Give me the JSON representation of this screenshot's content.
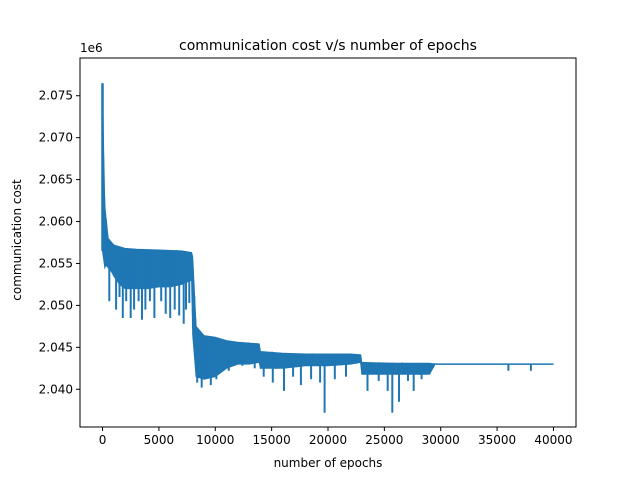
{
  "chart_data": {
    "type": "line",
    "title": "communication cost v/s number of epochs",
    "xlabel": "number of epochs",
    "ylabel": "communication cost",
    "offset_text": "1e6",
    "xlim": [
      -2000,
      42000
    ],
    "ylim": [
      2.0355,
      2.0795
    ],
    "xticks": [
      0,
      5000,
      10000,
      15000,
      20000,
      25000,
      30000,
      35000,
      40000
    ],
    "xtick_labels": [
      "0",
      "5000",
      "10000",
      "15000",
      "20000",
      "25000",
      "30000",
      "35000",
      "40000"
    ],
    "yticks": [
      2.04,
      2.045,
      2.05,
      2.055,
      2.06,
      2.065,
      2.07,
      2.075
    ],
    "ytick_labels": [
      "2.040",
      "2.045",
      "2.050",
      "2.055",
      "2.060",
      "2.065",
      "2.070",
      "2.075"
    ],
    "grid": false,
    "series_color": "#1f77b4",
    "series": [
      {
        "upper": {
          "x": [
            0,
            100,
            200,
            300,
            500,
            800,
            1000,
            1500,
            2000,
            3000,
            5000,
            7000,
            7900,
            8000,
            8300,
            9000,
            10000,
            11000,
            12000,
            13000,
            13900,
            14000,
            16000,
            18000,
            20000,
            22000,
            22900,
            23000,
            26000,
            29000,
            29500,
            40000
          ],
          "y": [
            2.0765,
            2.068,
            2.062,
            2.0605,
            2.058,
            2.0575,
            2.0572,
            2.057,
            2.0568,
            2.0567,
            2.0566,
            2.0565,
            2.0563,
            2.0558,
            2.0475,
            2.0464,
            2.0462,
            2.0458,
            2.0456,
            2.0455,
            2.0454,
            2.0445,
            2.0443,
            2.0442,
            2.0442,
            2.0442,
            2.0441,
            2.0432,
            2.0431,
            2.0431,
            2.043,
            2.043
          ]
        },
        "lower": {
          "x": [
            0,
            100,
            200,
            300,
            500,
            800,
            1000,
            1500,
            2000,
            3000,
            4000,
            5000,
            6000,
            7000,
            7900,
            8000,
            8300,
            9000,
            10000,
            11000,
            12000,
            13000,
            13900,
            14000,
            16000,
            18000,
            20000,
            22000,
            22900,
            23000,
            26000,
            29000,
            29500,
            40000
          ],
          "y": [
            2.0565,
            2.0555,
            2.0545,
            2.0548,
            2.0545,
            2.054,
            2.0535,
            2.0525,
            2.052,
            2.052,
            2.052,
            2.0522,
            2.0522,
            2.0525,
            2.053,
            2.0465,
            2.0415,
            2.0412,
            2.0415,
            2.0425,
            2.043,
            2.043,
            2.0432,
            2.0425,
            2.0425,
            2.0428,
            2.0428,
            2.043,
            2.0432,
            2.0418,
            2.0418,
            2.0418,
            2.043,
            2.043
          ]
        },
        "spikes": [
          [
            600,
            2.0505
          ],
          [
            1200,
            2.0495
          ],
          [
            1500,
            2.051
          ],
          [
            1800,
            2.0485
          ],
          [
            2100,
            2.0505
          ],
          [
            2500,
            2.0485
          ],
          [
            2800,
            2.0495
          ],
          [
            3200,
            2.0505
          ],
          [
            3500,
            2.0483
          ],
          [
            3800,
            2.0495
          ],
          [
            4200,
            2.0505
          ],
          [
            4600,
            2.0485
          ],
          [
            5200,
            2.0505
          ],
          [
            5600,
            2.049
          ],
          [
            6000,
            2.0485
          ],
          [
            6400,
            2.0495
          ],
          [
            6800,
            2.0488
          ],
          [
            7200,
            2.0478
          ],
          [
            7400,
            2.0495
          ],
          [
            7700,
            2.0503
          ],
          [
            8400,
            2.0408
          ],
          [
            8800,
            2.0402
          ],
          [
            9100,
            2.0412
          ],
          [
            9600,
            2.0405
          ],
          [
            10100,
            2.0412
          ],
          [
            11200,
            2.0422
          ],
          [
            12400,
            2.0428
          ],
          [
            13500,
            2.0425
          ],
          [
            14300,
            2.0415
          ],
          [
            15100,
            2.0408
          ],
          [
            16100,
            2.0398
          ],
          [
            16900,
            2.0415
          ],
          [
            17600,
            2.0405
          ],
          [
            18500,
            2.0412
          ],
          [
            19300,
            2.0408
          ],
          [
            19700,
            2.0372
          ],
          [
            20600,
            2.0412
          ],
          [
            21600,
            2.0415
          ],
          [
            23500,
            2.0398
          ],
          [
            24500,
            2.041
          ],
          [
            25300,
            2.0398
          ],
          [
            25700,
            2.0372
          ],
          [
            26300,
            2.0385
          ],
          [
            27100,
            2.041
          ],
          [
            27600,
            2.0398
          ],
          [
            28300,
            2.0412
          ],
          [
            29000,
            2.0422
          ],
          [
            36000,
            2.0422
          ],
          [
            38000,
            2.0422
          ]
        ]
      }
    ]
  }
}
